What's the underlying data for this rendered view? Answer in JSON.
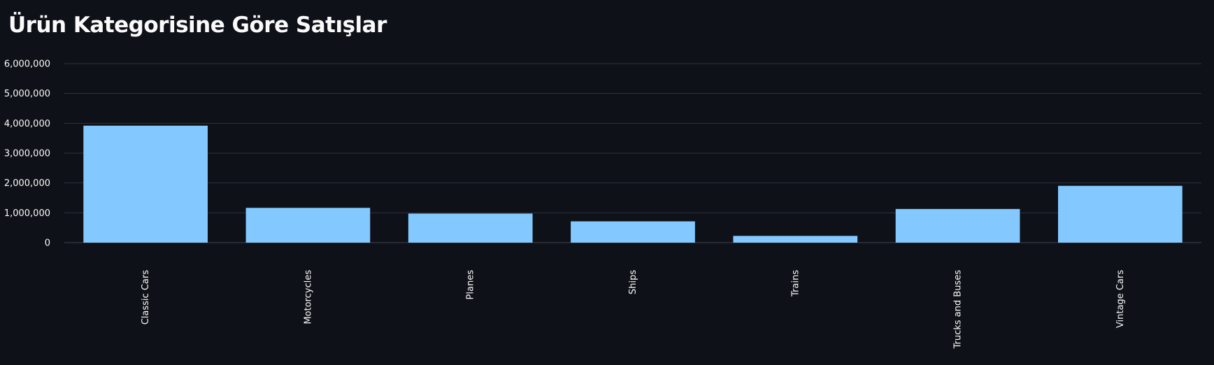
{
  "chart_data": {
    "type": "bar",
    "title": "Ürün Kategorisine Göre Satışlar",
    "categories": [
      "Classic Cars",
      "Motorcycles",
      "Planes",
      "Ships",
      "Trains",
      "Trucks and Buses",
      "Vintage Cars"
    ],
    "values": [
      3920000,
      1166000,
      975000,
      714000,
      226000,
      1128000,
      1904000
    ],
    "ylim": [
      0,
      6000000
    ],
    "yticks": [
      0,
      1000000,
      2000000,
      3000000,
      4000000,
      5000000,
      6000000
    ],
    "ytick_labels": [
      "0",
      "1,000,000",
      "2,000,000",
      "3,000,000",
      "4,000,000",
      "5,000,000",
      "6,000,000"
    ],
    "grid": true,
    "bar_color": "#83c9ff",
    "background_color": "#0e1117",
    "grid_color": "#31333f"
  }
}
